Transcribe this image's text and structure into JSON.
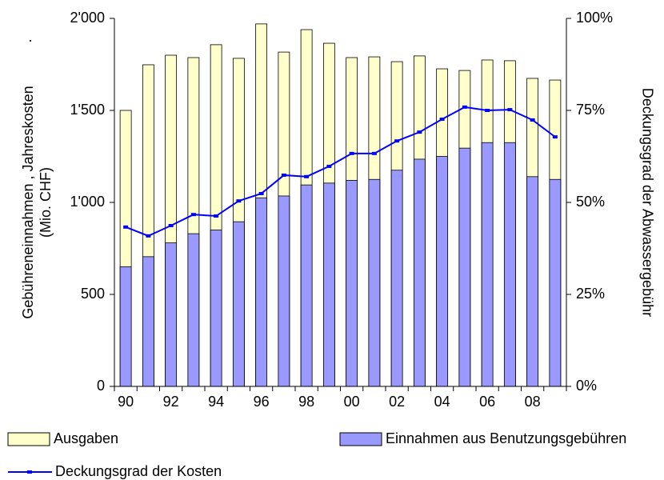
{
  "chart_data": {
    "type": "bar-line",
    "ylabel": [
      "Gebühreneinnahmen , Jahreskosten",
      "(Mio. CHF)"
    ],
    "y2label": "Deckungsgrad der Abwassergebühr",
    "annotations": [
      "."
    ],
    "categories": [
      "90",
      null,
      "92",
      null,
      "94",
      null,
      "96",
      null,
      "98",
      null,
      "00",
      null,
      "02",
      null,
      "04",
      null,
      "06",
      null,
      "08",
      null
    ],
    "series": [
      {
        "name": "Ausgaben",
        "color": "#ffffcc",
        "values": [
          1500,
          1748,
          1800,
          1787,
          1857,
          1783,
          1970,
          1817,
          1939,
          1865,
          1787,
          1791,
          1765,
          1796,
          1726,
          1717,
          1774,
          1770,
          1674,
          1665
        ]
      },
      {
        "name": "Einnahmen aus Benutzungsgebühren",
        "color": "#9999ff",
        "values": [
          650,
          705,
          780,
          830,
          850,
          895,
          1025,
          1035,
          1095,
          1105,
          1120,
          1125,
          1175,
          1235,
          1250,
          1295,
          1325,
          1325,
          1140,
          1125
        ]
      },
      {
        "name": "Deckungsgrad der Kosten",
        "color": "#0000ff",
        "axis": "y2",
        "values": [
          43.3,
          40.9,
          43.7,
          46.7,
          46.3,
          50.4,
          52.4,
          57.4,
          57,
          59.8,
          63.3,
          63.3,
          66.7,
          69.1,
          72.6,
          75.9,
          75,
          75.2,
          72.4,
          67.8
        ]
      }
    ],
    "ylim": [
      0,
      2000
    ],
    "yticks": [
      0,
      500,
      {
        "value": 1000,
        "label": "1'000"
      },
      {
        "value": 1500,
        "label": "1'500"
      },
      {
        "value": 2000,
        "label": "2'000"
      }
    ],
    "y2lim": [
      0,
      100
    ],
    "y2ticks": [
      {
        "value": 0,
        "label": "0%"
      },
      {
        "value": 25,
        "label": "25%"
      },
      {
        "value": 50,
        "label": "50%"
      },
      {
        "value": 75,
        "label": "75%"
      },
      {
        "value": 100,
        "label": "100%"
      }
    ],
    "grid": false
  }
}
